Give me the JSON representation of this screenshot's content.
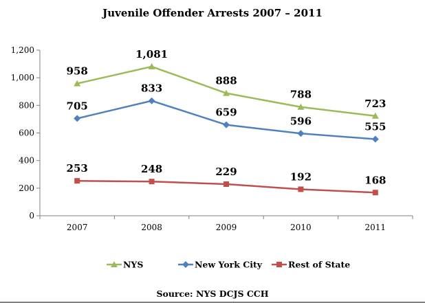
{
  "chart_data": {
    "type": "line",
    "title": "Juvenile Offender Arrests 2007 – 2011",
    "categories": [
      "2007",
      "2008",
      "2009",
      "2010",
      "2011"
    ],
    "ylim": [
      0,
      1200
    ],
    "yticks": [
      0,
      200,
      400,
      600,
      800,
      1000,
      1200
    ],
    "ytick_labels": [
      "0",
      "200",
      "400",
      "600",
      "800",
      "1,000",
      "1,200"
    ],
    "grid": false,
    "legend_position": "bottom",
    "series": [
      {
        "name": "NYS",
        "values": [
          958,
          1081,
          888,
          788,
          723
        ],
        "labels": [
          "958",
          "1,081",
          "888",
          "788",
          "723"
        ],
        "color": "#9BBB59",
        "marker": "triangle"
      },
      {
        "name": "New York City",
        "values": [
          705,
          833,
          659,
          596,
          555
        ],
        "labels": [
          "705",
          "833",
          "659",
          "596",
          "555"
        ],
        "color": "#4F81BD",
        "marker": "diamond"
      },
      {
        "name": "Rest of State",
        "values": [
          253,
          248,
          229,
          192,
          168
        ],
        "labels": [
          "253",
          "248",
          "229",
          "192",
          "168"
        ],
        "color": "#C0504D",
        "marker": "square"
      }
    ],
    "source": "Source: NYS DCJS CCH"
  }
}
